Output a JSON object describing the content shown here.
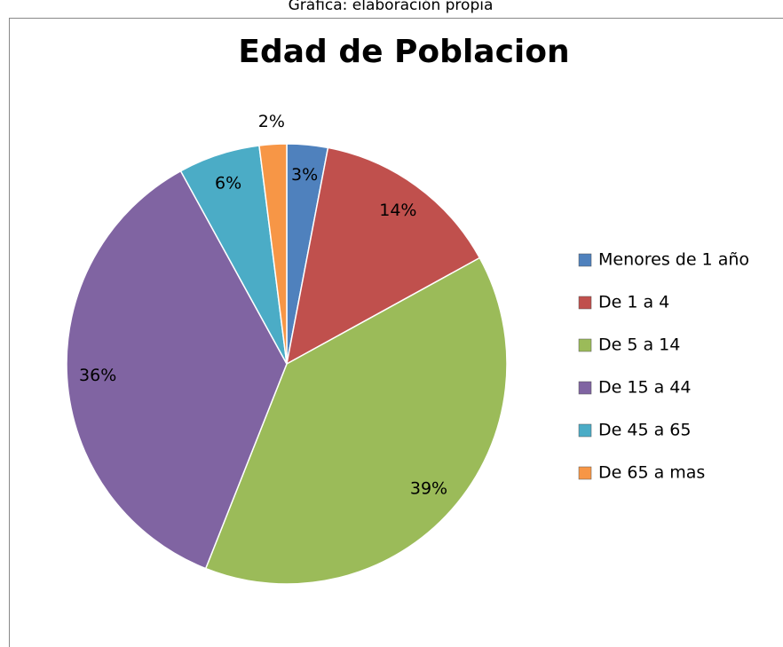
{
  "chart_data": {
    "type": "pie",
    "note": "Gráfica: elaboración propia",
    "title": "Edad de Poblacion",
    "categories": [
      "Menores de 1 año",
      "De 1 a 4",
      "De 5 a 14",
      "De 15 a 44",
      "De 45 a 65",
      "De 65 a mas"
    ],
    "values": [
      3,
      14,
      39,
      36,
      6,
      2
    ],
    "value_labels": [
      "3%",
      "14%",
      "39%",
      "36%",
      "6%",
      "2%"
    ],
    "colors": [
      "#4f81bd",
      "#c0504d",
      "#9bbb59",
      "#8064a2",
      "#4bacc6",
      "#f79646"
    ],
    "legend": "right"
  }
}
